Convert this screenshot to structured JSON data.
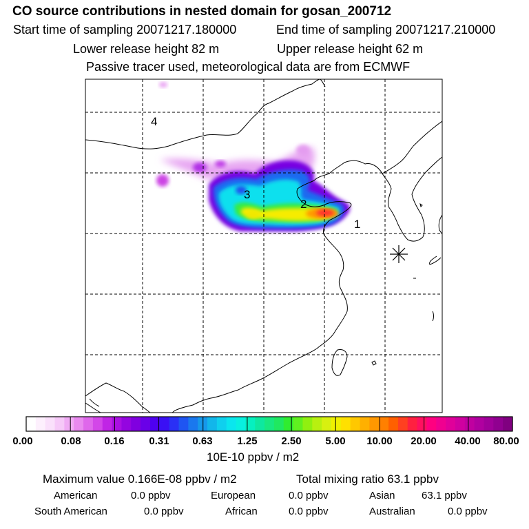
{
  "header": {
    "title": "CO  source contributions in nested domain for gosan_200712",
    "start_time": "Start time of sampling 20071217.180000",
    "end_time": "End time of sampling 20071217.210000",
    "lower_release": "Lower release height   82 m",
    "upper_release": "Upper release height   62 m",
    "note": "Passive tracer used, meteorological data are from ECMWF"
  },
  "map": {
    "region_labels": [
      "1",
      "2",
      "3",
      "4"
    ],
    "receptor_marker": "asterisk-icon"
  },
  "colorbar": {
    "ticks": [
      "0.00",
      "0.08",
      "0.16",
      "0.31",
      "0.63",
      "1.25",
      "2.50",
      "5.00",
      "10.00",
      "20.00",
      "40.00",
      "80.00"
    ],
    "unit": "10E-10 ppbv / m2",
    "colors": [
      "#ffffff",
      "#fdf0fd",
      "#fae0fb",
      "#f6c9f8",
      "#f0abf4",
      "#e98aef",
      "#df68eb",
      "#d347e8",
      "#c025e5",
      "#aa10e2",
      "#9405e0",
      "#8000e0",
      "#6a00e8",
      "#4e00f0",
      "#3a10f5",
      "#2a30f5",
      "#1f55f2",
      "#1a78ee",
      "#1698ea",
      "#12b6ea",
      "#0fd0ee",
      "#0ae6ee",
      "#08f0e0",
      "#06f0c0",
      "#0ee8a0",
      "#18e880",
      "#20e860",
      "#30ec30",
      "#60f020",
      "#90f010",
      "#b8f010",
      "#d8f010",
      "#f0f000",
      "#ffe000",
      "#ffc800",
      "#ffb000",
      "#ff9800",
      "#ff8000",
      "#ff6000",
      "#ff4020",
      "#ff2040",
      "#ff1060",
      "#ff0080",
      "#f00090",
      "#e0009a",
      "#d000a0",
      "#c000a0",
      "#b000a0",
      "#a0009a",
      "#900090",
      "#800080"
    ]
  },
  "stats": {
    "max_value": "Maximum value  0.166E-08 ppbv / m2",
    "total_mixing": "Total mixing ratio       63.1 ppbv",
    "rows": [
      [
        "American",
        "0.0 ppbv",
        "European",
        "0.0 ppbv",
        "Asian",
        "63.1 ppbv"
      ],
      [
        "South American",
        "0.0 ppbv",
        "African",
        "0.0 ppbv",
        "Australian",
        "0.0 ppbv"
      ]
    ]
  }
}
